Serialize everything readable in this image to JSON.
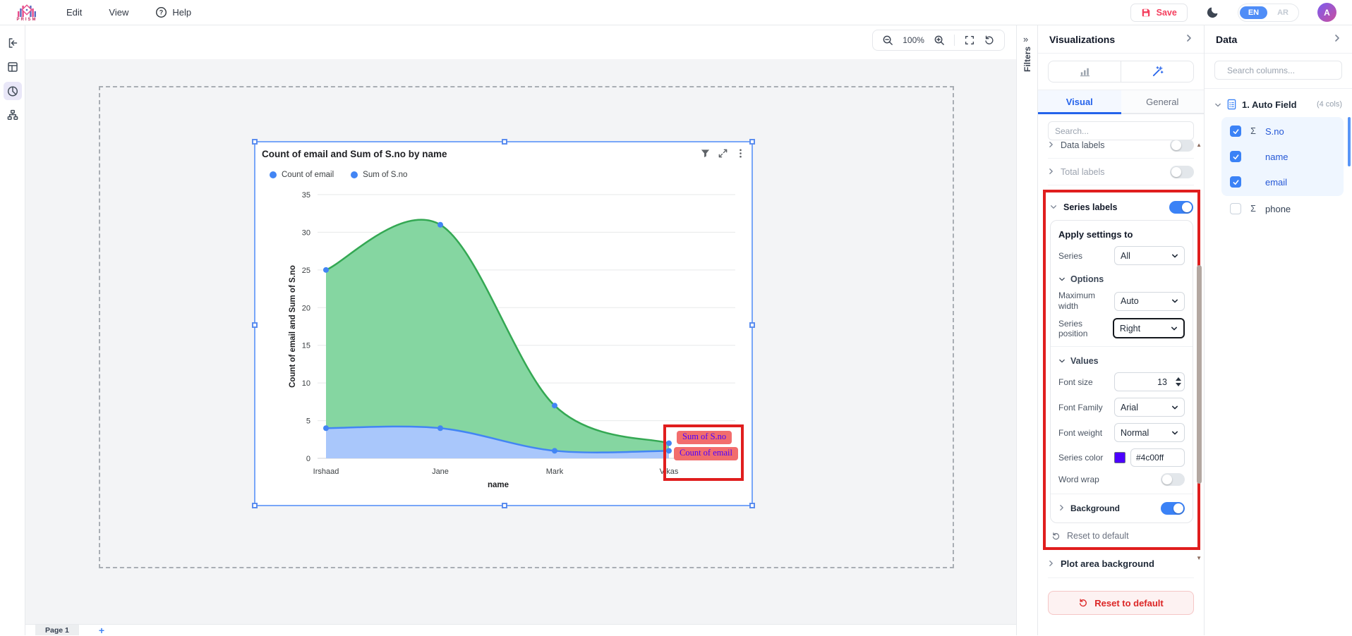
{
  "header": {
    "brand": "PRISM",
    "menus": [
      "Edit",
      "View",
      "Help"
    ],
    "save_label": "Save",
    "lang_en": "EN",
    "lang_ar": "AR",
    "avatar_initial": "A"
  },
  "toolbar": {
    "zoom_level": "100%"
  },
  "page_bar": {
    "page_tab": "Page 1",
    "add_label": "+"
  },
  "filters_rail": {
    "label": "Filters",
    "collapse_glyph": "»"
  },
  "chart_card": {
    "title": "Count of email and Sum of S.no by name",
    "legend": [
      {
        "label": "Count of email"
      },
      {
        "label": "Sum of S.no"
      }
    ],
    "series_chips": [
      {
        "label": "Sum of S.no"
      },
      {
        "label": "Count of email"
      }
    ]
  },
  "chart_data": {
    "type": "area",
    "title": "Count of email and Sum of S.no by name",
    "x": [
      "Irshaad",
      "Jane",
      "Mark",
      "Vikas"
    ],
    "xlabel": "name",
    "ylabel": "Count of email and Sum of S.no",
    "ylim": [
      0,
      35
    ],
    "yticks": [
      0,
      5,
      10,
      15,
      20,
      25,
      30,
      35
    ],
    "grid": true,
    "legend_position": "top",
    "series": [
      {
        "name": "Sum of S.no",
        "values": [
          25,
          31,
          7,
          2
        ],
        "line_color": "#34a853",
        "fill_color": "#85d6a1",
        "point_color": "#4285f4"
      },
      {
        "name": "Count of email",
        "values": [
          4,
          4,
          1,
          1
        ],
        "line_color": "#4285f4",
        "fill_color": "#a9c7fb",
        "point_color": "#4285f4"
      }
    ]
  },
  "viz": {
    "title": "Visualizations",
    "tabs": [
      {
        "label": "Visual"
      },
      {
        "label": "General"
      }
    ],
    "search_placeholder": "Search...",
    "rows": {
      "data_labels": "Data labels",
      "total_labels": "Total labels",
      "series_labels": "Series labels"
    },
    "settings": {
      "apply_heading": "Apply settings to",
      "series_label": "Series",
      "series_value": "All",
      "options_heading": "Options",
      "max_width_label": "Maximum width",
      "max_width_value": "Auto",
      "series_position_label": "Series position",
      "series_position_value": "Right",
      "values_heading": "Values",
      "font_size_label": "Font size",
      "font_size_value": "13",
      "font_family_label": "Font Family",
      "font_family_value": "Arial",
      "font_weight_label": "Font weight",
      "font_weight_value": "Normal",
      "series_color_label": "Series color",
      "series_color_value": "#4c00ff",
      "word_wrap_label": "Word wrap",
      "background_label": "Background",
      "reset_link": "Reset to default"
    },
    "plot_area_label": "Plot area background",
    "reset_button": "Reset to default"
  },
  "data_panel": {
    "title": "Data",
    "search_placeholder": "Search columns...",
    "dataset": {
      "label": "1. Auto Field",
      "cols": "(4 cols)"
    },
    "fields": [
      {
        "name": "S.no",
        "checked": true,
        "sigma": true
      },
      {
        "name": "name",
        "checked": true,
        "sigma": false
      },
      {
        "name": "email",
        "checked": true,
        "sigma": false
      },
      {
        "name": "phone",
        "checked": false,
        "sigma": true
      }
    ]
  },
  "colors": {
    "accent_blue": "#3b82f6",
    "chart_green": "#34a853",
    "chart_blue": "#4285f4",
    "series_label_color": "#4c00ff",
    "chip_bg": "#f26d6d",
    "annotation_red": "#e01e1e",
    "save_pink": "#f43f5e"
  },
  "icons": {
    "sigma": "Σ"
  }
}
